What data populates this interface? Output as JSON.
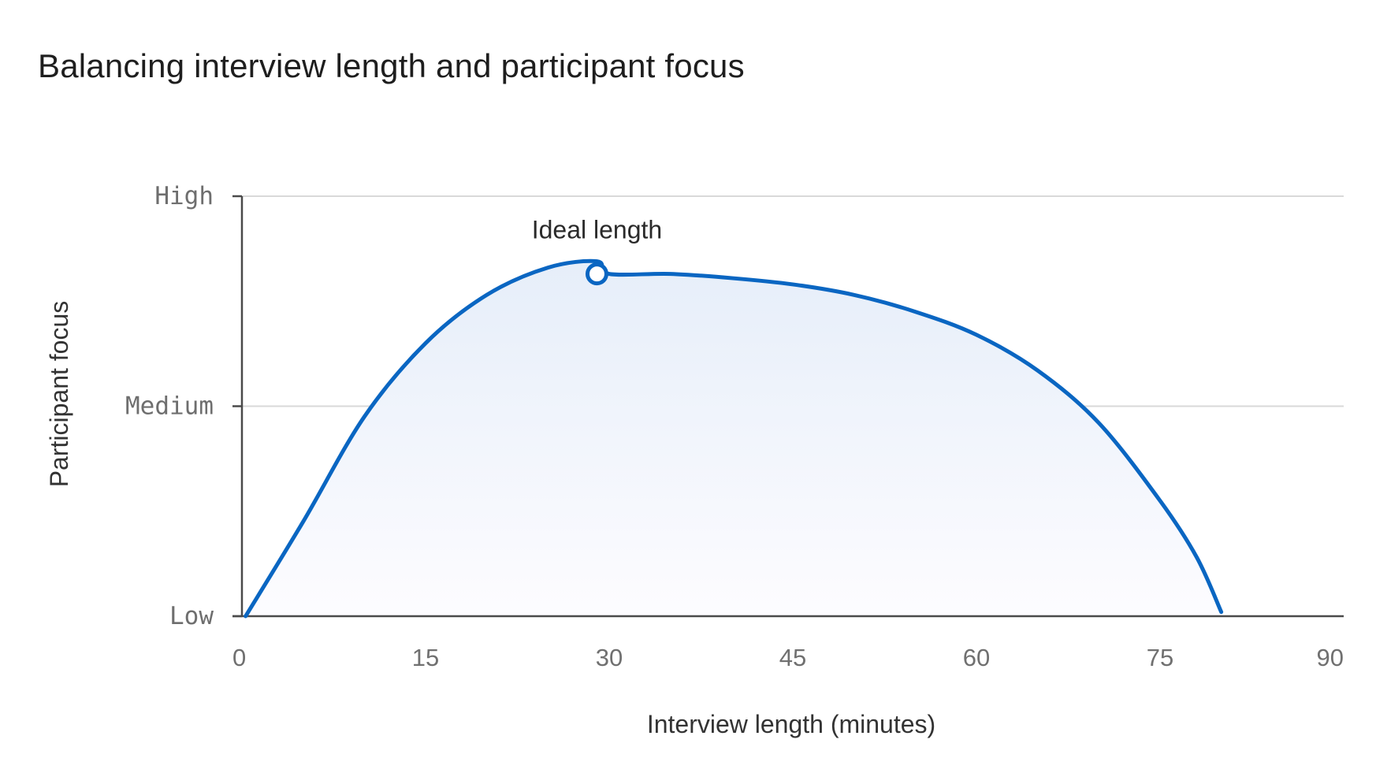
{
  "chart_data": {
    "type": "area",
    "title": "Balancing interview length and participant focus",
    "xlabel": "Interview length (minutes)",
    "ylabel": "Participant focus",
    "xlim": [
      0,
      90
    ],
    "ylim": [
      0,
      2
    ],
    "x_ticks": [
      "0",
      "15",
      "30",
      "45",
      "60",
      "75",
      "90"
    ],
    "y_ticks": [
      {
        "value": 0,
        "label": "Low"
      },
      {
        "value": 1,
        "label": "Medium"
      },
      {
        "value": 2,
        "label": "High"
      }
    ],
    "grid": true,
    "series": [
      {
        "x": [
          0.3,
          5,
          10,
          15,
          20,
          25,
          29,
          30,
          35,
          40,
          45,
          50,
          55,
          60,
          65,
          70,
          75,
          78,
          80
        ],
        "y": [
          0,
          0.45,
          0.95,
          1.3,
          1.53,
          1.66,
          1.69,
          1.63,
          1.63,
          1.61,
          1.58,
          1.53,
          1.45,
          1.34,
          1.17,
          0.92,
          0.55,
          0.28,
          0.02
        ]
      }
    ],
    "annotations": [
      {
        "label": "Ideal length",
        "x": 29,
        "y": 1.63
      }
    ],
    "colors": {
      "line": "#0a66c2",
      "fill_top": "#e6eef9",
      "fill_bottom": "#fdfcff",
      "grid": "#d9d9d9",
      "axis": "#4a4a4a"
    }
  }
}
